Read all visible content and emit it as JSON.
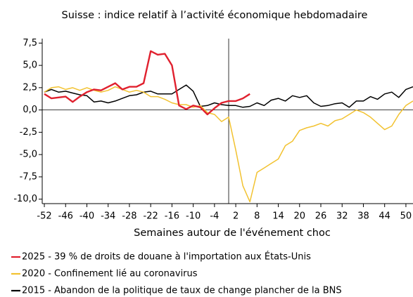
{
  "chart_data": {
    "type": "line",
    "title": "Suisse : indice relatif à l’activité économique hebdomadaire",
    "x_label": "Semaines autour de l'événement choc",
    "x": [
      -52,
      -50,
      -48,
      -46,
      -44,
      -42,
      -40,
      -38,
      -36,
      -34,
      -32,
      -30,
      -28,
      -26,
      -24,
      -22,
      -20,
      -18,
      -16,
      -14,
      -12,
      -10,
      -8,
      -6,
      -4,
      -2,
      0,
      2,
      4,
      6,
      8,
      10,
      12,
      14,
      16,
      18,
      20,
      22,
      24,
      26,
      28,
      30,
      32,
      34,
      36,
      38,
      40,
      42,
      44,
      46,
      48,
      50,
      52
    ],
    "series": [
      {
        "name": "2025 - 39 % de droits de douane à l'importation aux États-Unis",
        "color": "#e0202e",
        "values": [
          1.8,
          1.3,
          1.4,
          1.5,
          0.9,
          1.5,
          2.0,
          2.3,
          2.2,
          2.6,
          3.0,
          2.3,
          2.6,
          2.6,
          3.0,
          6.6,
          6.2,
          6.3,
          5.0,
          0.5,
          0.1,
          0.5,
          0.3,
          -0.5,
          0.2,
          0.8,
          1.0,
          1.0,
          1.3,
          1.8,
          null,
          null,
          null,
          null,
          null,
          null,
          null,
          null,
          null,
          null,
          null,
          null,
          null,
          null,
          null,
          null,
          null,
          null,
          null,
          null,
          null,
          null,
          null
        ]
      },
      {
        "name": "2020 - Confinement lié au coronavirus",
        "color": "#f2c230",
        "values": [
          2.0,
          2.5,
          2.6,
          2.3,
          2.5,
          2.2,
          2.5,
          2.2,
          2.0,
          2.2,
          2.6,
          2.3,
          2.0,
          2.2,
          2.0,
          1.5,
          1.5,
          1.2,
          0.8,
          0.6,
          0.6,
          0.3,
          0.5,
          -0.3,
          -0.5,
          -1.3,
          -0.8,
          -4.5,
          -8.5,
          -10.3,
          -7.0,
          -6.5,
          -6.0,
          -5.5,
          -4.0,
          -3.5,
          -2.3,
          -2.0,
          -1.8,
          -1.5,
          -1.8,
          -1.2,
          -1.0,
          -0.5,
          0.0,
          -0.3,
          -0.8,
          -1.5,
          -2.2,
          -1.8,
          -0.5,
          0.5,
          1.0
        ]
      },
      {
        "name": "2015 - Abandon de la politique de taux de change plancher de la BNS",
        "color": "#000000",
        "values": [
          2.0,
          2.3,
          2.0,
          2.1,
          1.9,
          1.7,
          1.6,
          0.9,
          1.0,
          0.8,
          1.0,
          1.3,
          1.6,
          1.7,
          2.0,
          2.1,
          1.8,
          1.8,
          1.8,
          2.3,
          2.8,
          2.1,
          0.4,
          0.5,
          0.8,
          0.6,
          0.5,
          0.5,
          0.3,
          0.4,
          0.8,
          0.5,
          1.1,
          1.3,
          1.0,
          1.6,
          1.4,
          1.6,
          0.8,
          0.4,
          0.5,
          0.7,
          0.8,
          0.3,
          1.0,
          1.0,
          1.5,
          1.2,
          1.8,
          2.0,
          1.4,
          2.3,
          2.6
        ]
      }
    ],
    "xlim": [
      -52.6,
      52
    ],
    "xticks": [
      -52,
      -46,
      -40,
      -34,
      -28,
      -22,
      -16,
      -10,
      -4,
      2,
      8,
      14,
      20,
      26,
      32,
      38,
      44,
      50
    ],
    "ylim": [
      -10.5,
      8
    ],
    "yticks": [
      {
        "value": 7.5,
        "label": "7,5"
      },
      {
        "value": 5,
        "label": "5,0"
      },
      {
        "value": 2.5,
        "label": "2,5"
      },
      {
        "value": 0,
        "label": "0,0"
      },
      {
        "value": -2.5,
        "label": "-2,5"
      },
      {
        "value": -5,
        "label": "-5,0"
      },
      {
        "value": -7.5,
        "label": "-7,5"
      },
      {
        "value": -10,
        "label": "-10,0"
      }
    ],
    "vline_x": 0,
    "legend": "bottom"
  }
}
